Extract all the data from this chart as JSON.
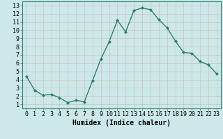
{
  "x": [
    0,
    1,
    2,
    3,
    4,
    5,
    6,
    7,
    8,
    9,
    10,
    11,
    12,
    13,
    14,
    15,
    16,
    17,
    18,
    19,
    20,
    21,
    22,
    23
  ],
  "y": [
    4.4,
    2.7,
    2.1,
    2.2,
    1.8,
    1.2,
    1.5,
    1.3,
    3.9,
    6.5,
    8.6,
    11.2,
    9.8,
    12.4,
    12.7,
    12.5,
    11.3,
    10.3,
    8.7,
    7.3,
    7.2,
    6.2,
    5.8,
    4.7
  ],
  "line_color": "#2e7d6e",
  "marker": "D",
  "marker_size": 2.0,
  "bg_color": "#cce8e8",
  "grid_color": "#b8d8d8",
  "xlabel": "Humidex (Indice chaleur)",
  "xlim": [
    -0.5,
    23.5
  ],
  "ylim": [
    0.5,
    13.5
  ],
  "xticks": [
    0,
    1,
    2,
    3,
    4,
    5,
    6,
    7,
    8,
    9,
    10,
    11,
    12,
    13,
    14,
    15,
    16,
    17,
    18,
    19,
    20,
    21,
    22,
    23
  ],
  "yticks": [
    1,
    2,
    3,
    4,
    5,
    6,
    7,
    8,
    9,
    10,
    11,
    12,
    13
  ],
  "xlabel_fontsize": 7,
  "tick_fontsize": 6,
  "linewidth": 1.0
}
